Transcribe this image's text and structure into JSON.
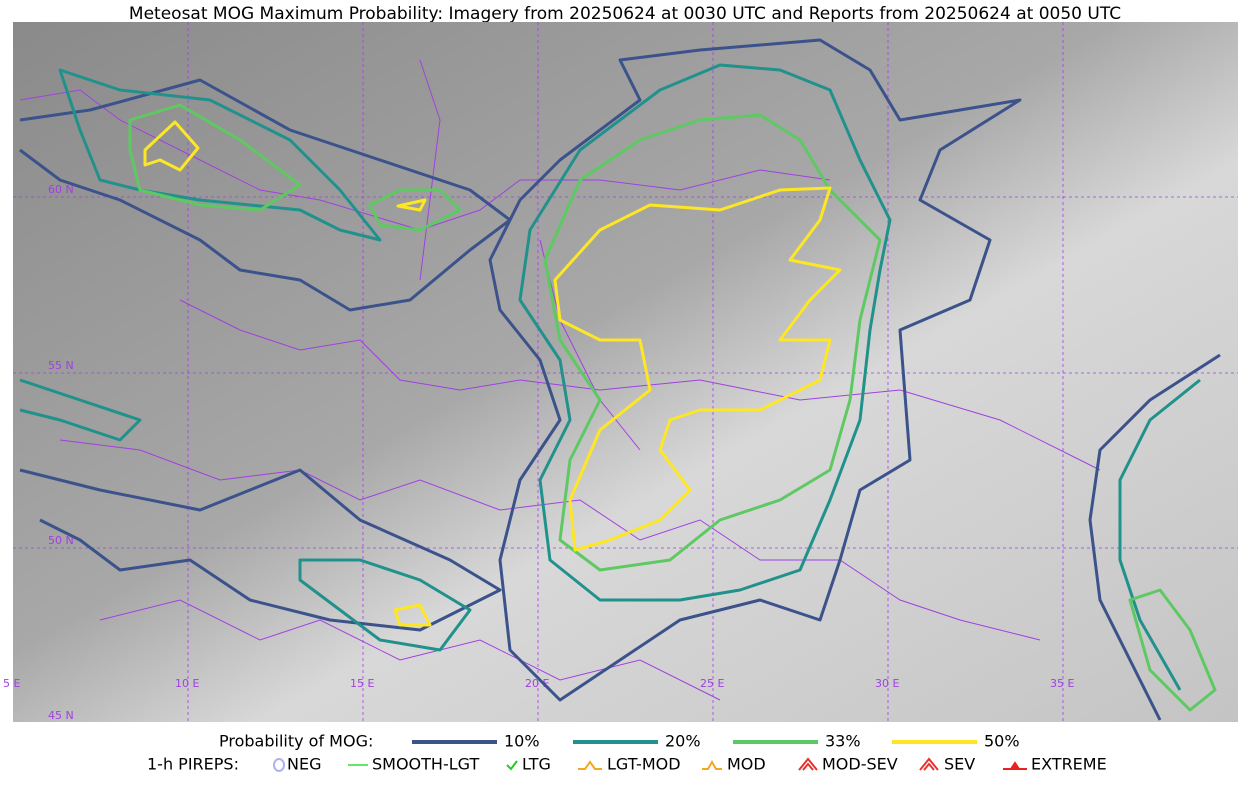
{
  "title": "Meteosat MOG Maximum Probability: Imagery from 20250624 at 0030 UTC and Reports from 20250624 at 0050 UTC",
  "map": {
    "lat_labels": [
      "60 N",
      "55 N",
      "50 N",
      "45 N"
    ],
    "lon_labels": [
      "5 E",
      "10 E",
      "15 E",
      "20 E",
      "25 E",
      "30 E",
      "35 E"
    ]
  },
  "legend": {
    "probability": {
      "label": "Probability of MOG:",
      "items": [
        {
          "label": "10%",
          "color": "#3b528b"
        },
        {
          "label": "20%",
          "color": "#21918c"
        },
        {
          "label": "33%",
          "color": "#5ec962"
        },
        {
          "label": "50%",
          "color": "#fde725"
        }
      ]
    },
    "pireps": {
      "label": "1-h PIREPS:",
      "items": [
        {
          "label": "NEG",
          "color": "#b0b0f0"
        },
        {
          "label": "SMOOTH-LGT",
          "color": "#33dd33"
        },
        {
          "label": "LTG",
          "color": "#22cc22"
        },
        {
          "label": "LGT-MOD",
          "color": "#f5a623"
        },
        {
          "label": "MOD",
          "color": "#f5a623"
        },
        {
          "label": "MOD-SEV",
          "color": "#e8322e"
        },
        {
          "label": "SEV",
          "color": "#e8322e"
        },
        {
          "label": "EXTREME",
          "color": "#e8221e"
        }
      ]
    }
  }
}
